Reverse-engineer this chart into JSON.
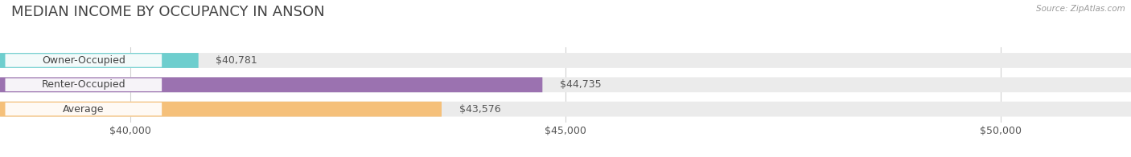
{
  "title": "MEDIAN INCOME BY OCCUPANCY IN ANSON",
  "source": "Source: ZipAtlas.com",
  "categories": [
    "Owner-Occupied",
    "Renter-Occupied",
    "Average"
  ],
  "values": [
    40781,
    44735,
    43576
  ],
  "bar_colors": [
    "#6ecece",
    "#9b72b0",
    "#f5c07a"
  ],
  "bar_bg_color": "#e8e8e8",
  "value_labels": [
    "$40,781",
    "$44,735",
    "$43,576"
  ],
  "xmin": 38500,
  "xmax": 51500,
  "xticks": [
    40000,
    45000,
    50000
  ],
  "xtick_labels": [
    "$40,000",
    "$45,000",
    "$50,000"
  ],
  "title_fontsize": 13,
  "label_fontsize": 9,
  "tick_fontsize": 9,
  "bar_height": 0.62,
  "background_color": "#ffffff",
  "bar_bg_color2": "#ebebeb",
  "label_pill_color": "#ffffff",
  "grid_color": "#d0d0d0",
  "text_color": "#555555",
  "title_color": "#444444",
  "source_color": "#999999"
}
